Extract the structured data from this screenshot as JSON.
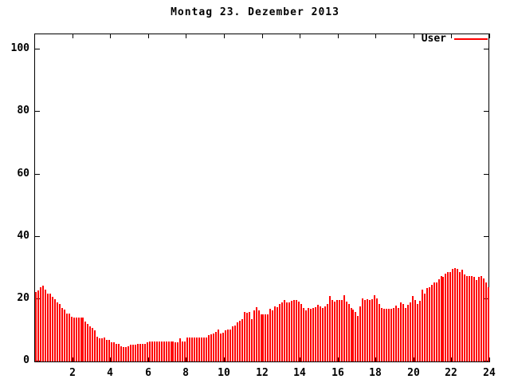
{
  "title": "Montag 23. Dezember 2013",
  "legend": {
    "label": "User",
    "color": "#ff0000"
  },
  "colors": {
    "bar": "#ff0000",
    "axis": "#000000",
    "text": "#000000",
    "background": "#ffffff"
  },
  "chart_data": {
    "type": "bar",
    "title": "Montag 23. Dezember 2013",
    "xlabel": "",
    "ylabel": "",
    "x_unit": "hour of day",
    "sample_interval_minutes": 7.5,
    "xlim": [
      0,
      24
    ],
    "ylim": [
      0,
      105
    ],
    "x_ticks": [
      2,
      4,
      6,
      8,
      10,
      12,
      14,
      16,
      18,
      20,
      22,
      24
    ],
    "y_ticks": [
      0,
      20,
      40,
      60,
      80,
      100
    ],
    "grid": false,
    "legend_position": "top-right",
    "series": [
      {
        "name": "User",
        "color": "#ff0000",
        "values": [
          21.9,
          22.5,
          23.6,
          24.0,
          22.8,
          21.6,
          21.6,
          20.5,
          19.7,
          18.7,
          18.2,
          17.0,
          16.3,
          15.1,
          15.1,
          14.0,
          13.7,
          13.7,
          13.7,
          13.7,
          13.7,
          12.5,
          11.8,
          11.1,
          10.5,
          9.7,
          7.6,
          7.1,
          7.1,
          7.3,
          6.7,
          6.7,
          6.0,
          6.0,
          5.5,
          5.5,
          4.7,
          4.4,
          4.4,
          4.7,
          5.0,
          5.0,
          5.0,
          5.4,
          5.4,
          5.4,
          5.4,
          6.0,
          6.1,
          6.1,
          6.1,
          6.1,
          6.1,
          6.1,
          6.1,
          6.1,
          6.1,
          6.1,
          6.1,
          6.0,
          6.0,
          7.1,
          6.2,
          6.2,
          7.3,
          7.3,
          7.3,
          7.3,
          7.5,
          7.5,
          7.4,
          7.4,
          7.5,
          8.1,
          8.4,
          8.8,
          9.2,
          10.1,
          8.8,
          9.0,
          9.7,
          9.9,
          10.1,
          11.0,
          11.2,
          12.4,
          12.8,
          13.2,
          15.5,
          15.4,
          15.5,
          13.2,
          16.1,
          17.2,
          16.1,
          14.9,
          14.9,
          14.9,
          14.9,
          16.7,
          16.1,
          17.5,
          17.2,
          18.2,
          18.6,
          19.5,
          18.6,
          18.6,
          19.2,
          19.5,
          19.5,
          19.0,
          18.2,
          16.9,
          16.1,
          16.9,
          16.7,
          16.9,
          17.2,
          17.8,
          17.3,
          16.9,
          17.5,
          18.2,
          20.8,
          19.5,
          19.0,
          19.5,
          19.5,
          19.5,
          20.9,
          19.0,
          18.2,
          16.9,
          16.5,
          15.6,
          14.4,
          17.3,
          19.9,
          19.5,
          19.6,
          19.5,
          19.6,
          21.0,
          19.9,
          18.2,
          16.9,
          16.7,
          16.7,
          16.7,
          16.7,
          16.9,
          17.6,
          16.9,
          18.8,
          18.2,
          16.9,
          17.8,
          18.8,
          20.8,
          19.5,
          18.2,
          19.3,
          22.9,
          21.5,
          23.3,
          23.5,
          24.2,
          25.0,
          25.0,
          26.1,
          27.2,
          26.8,
          27.8,
          28.3,
          28.5,
          29.5,
          29.7,
          29.3,
          28.5,
          29.1,
          27.6,
          27.2,
          27.2,
          27.2,
          26.9,
          25.9,
          26.8,
          27.2,
          26.3,
          25.0,
          23.5
        ]
      }
    ]
  }
}
